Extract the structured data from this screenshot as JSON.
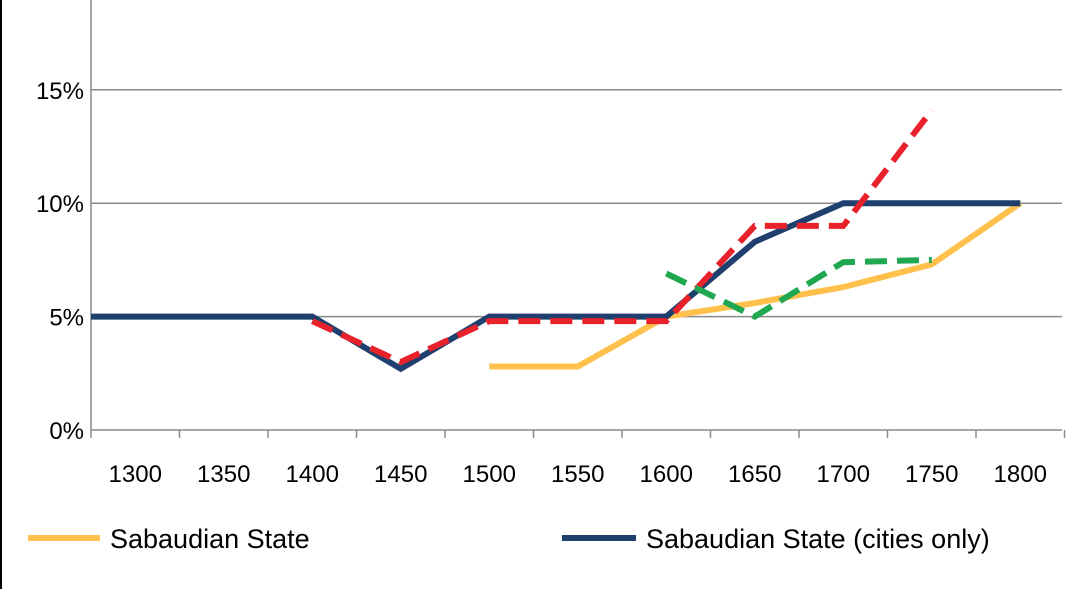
{
  "chart_data": {
    "type": "line",
    "x": [
      1300,
      1350,
      1400,
      1450,
      1500,
      1550,
      1600,
      1650,
      1700,
      1750,
      1800
    ],
    "xticks": [
      "1300",
      "1350",
      "1400",
      "1450",
      "1500",
      "1550",
      "1600",
      "1650",
      "1700",
      "1750",
      "1800"
    ],
    "yticks": [
      "0%",
      "5%",
      "10%",
      "15%"
    ],
    "ylim": [
      0,
      0.19
    ],
    "grid": true,
    "legend": "bottom",
    "series": [
      {
        "name": "Sabaudian State",
        "color": "#FFC04C",
        "dash": "solid",
        "points": [
          [
            1500,
            0.028
          ],
          [
            1550,
            0.028
          ],
          [
            1600,
            0.05
          ],
          [
            1650,
            0.056
          ],
          [
            1700,
            0.063
          ],
          [
            1750,
            0.073
          ],
          [
            1800,
            0.1
          ]
        ]
      },
      {
        "name": "Sabaudian State (cities only)",
        "color": "#1F3F6F",
        "dash": "solid",
        "points": [
          [
            1275,
            0.05
          ],
          [
            1300,
            0.05
          ],
          [
            1350,
            0.05
          ],
          [
            1400,
            0.05
          ],
          [
            1450,
            0.027
          ],
          [
            1500,
            0.05
          ],
          [
            1550,
            0.05
          ],
          [
            1600,
            0.05
          ],
          [
            1650,
            0.083
          ],
          [
            1700,
            0.1
          ],
          [
            1750,
            0.1
          ],
          [
            1800,
            0.1
          ]
        ]
      },
      {
        "name": "",
        "color": "#E8212B",
        "dash": "dashed",
        "points": [
          [
            1400,
            0.048
          ],
          [
            1450,
            0.03
          ],
          [
            1500,
            0.048
          ],
          [
            1550,
            0.048
          ],
          [
            1600,
            0.048
          ],
          [
            1650,
            0.09
          ],
          [
            1700,
            0.09
          ],
          [
            1750,
            0.141
          ]
        ]
      },
      {
        "name": "",
        "color": "#1FA84F",
        "dash": "dashed",
        "points": [
          [
            1600,
            0.069
          ],
          [
            1650,
            0.05
          ],
          [
            1700,
            0.074
          ],
          [
            1750,
            0.075
          ]
        ]
      }
    ]
  }
}
